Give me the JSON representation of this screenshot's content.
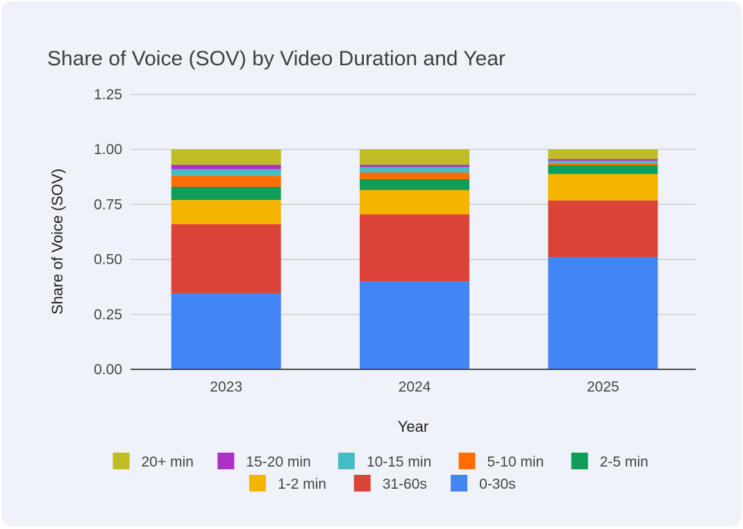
{
  "chart_data": {
    "type": "bar",
    "stacked": true,
    "title": "Share of Voice (SOV) by Video Duration and Year",
    "xlabel": "Year",
    "ylabel": "Share of Voice (SOV)",
    "ylim": [
      0,
      1.25
    ],
    "yticks": [
      "0.00",
      "0.25",
      "0.50",
      "0.75",
      "1.00",
      "1.25"
    ],
    "ytick_values": [
      0,
      0.25,
      0.5,
      0.75,
      1.0,
      1.25
    ],
    "grid": true,
    "legend_position": "bottom",
    "categories": [
      "2023",
      "2024",
      "2025"
    ],
    "series": [
      {
        "name": "0-30s",
        "color": "#4285f4",
        "values": [
          0.345,
          0.4,
          0.51
        ]
      },
      {
        "name": "31-60s",
        "color": "#db4437",
        "values": [
          0.315,
          0.305,
          0.258
        ]
      },
      {
        "name": "1-2 min",
        "color": "#f4b400",
        "values": [
          0.11,
          0.11,
          0.12
        ]
      },
      {
        "name": "2-5 min",
        "color": "#0f9d58",
        "values": [
          0.06,
          0.05,
          0.04
        ]
      },
      {
        "name": "5-10 min",
        "color": "#ff6d01",
        "values": [
          0.05,
          0.03,
          0.01
        ]
      },
      {
        "name": "10-15 min",
        "color": "#46bdc6",
        "values": [
          0.03,
          0.025,
          0.01
        ]
      },
      {
        "name": "15-20 min",
        "color": "#ab30c4",
        "values": [
          0.02,
          0.01,
          0.008
        ]
      },
      {
        "name": "20+ min",
        "color": "#bfbd24",
        "values": [
          0.07,
          0.07,
          0.044
        ]
      }
    ],
    "legend_order": [
      "20+ min",
      "15-20 min",
      "10-15 min",
      "5-10 min",
      "2-5 min",
      "1-2 min",
      "31-60s",
      "0-30s"
    ]
  }
}
